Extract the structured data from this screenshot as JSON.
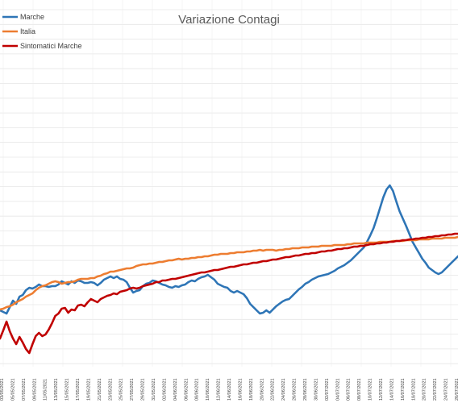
{
  "chart_data": {
    "type": "line",
    "title": "Variazione Contagi",
    "xlabel": "",
    "ylabel": "",
    "legend_position": "top-left",
    "grid": true,
    "x_tick_labels": [
      "03/05/2021",
      "05/05/2021",
      "07/05/2021",
      "09/05/2021",
      "11/05/2021",
      "13/05/2021",
      "15/05/2021",
      "17/05/2021",
      "19/05/2021",
      "21/05/2021",
      "23/05/2021",
      "25/05/2021",
      "27/05/2021",
      "29/05/2021",
      "31/05/2021",
      "02/06/2021",
      "04/06/2021",
      "06/06/2021",
      "08/06/2021",
      "10/06/2021",
      "12/06/2021",
      "14/06/2021",
      "16/06/2021",
      "18/06/2021",
      "20/06/2021",
      "22/06/2021",
      "24/06/2021",
      "26/06/2021",
      "28/06/2021",
      "30/06/2021",
      "02/07/2021",
      "04/07/2021",
      "06/07/2021",
      "08/07/2021",
      "10/07/2021",
      "12/07/2021",
      "14/07/2021",
      "16/07/2021",
      "18/07/2021",
      "20/07/2021",
      "22/07/2021",
      "24/07/2021",
      "26/07/2021"
    ],
    "series": [
      {
        "name": "Marche",
        "color": "#2E75B6",
        "values": [
          385,
          387,
          389,
          381,
          373,
          377,
          368,
          366,
          360,
          357,
          358,
          356,
          353,
          355,
          355,
          356,
          355,
          355,
          353,
          349,
          351,
          353,
          349,
          351,
          348,
          349,
          351,
          351,
          350,
          351,
          354,
          351,
          347,
          345,
          343,
          345,
          343,
          346,
          347,
          350,
          357,
          363,
          361,
          360,
          355,
          352,
          351,
          348,
          349,
          351,
          353,
          354,
          356,
          357,
          355,
          356,
          354,
          353,
          350,
          348,
          349,
          346,
          344,
          343,
          341,
          344,
          347,
          352,
          354,
          356,
          357,
          361,
          363,
          361,
          363,
          365,
          370,
          377,
          381,
          385,
          389,
          388,
          385,
          388,
          384,
          380,
          377,
          374,
          372,
          371,
          367,
          363,
          359,
          356,
          352,
          350,
          347,
          345,
          343,
          342,
          341,
          340,
          338,
          336,
          333,
          331,
          329,
          326,
          323,
          319,
          315,
          311,
          307,
          300,
          292,
          283,
          271,
          258,
          245,
          235,
          230,
          237,
          250,
          262,
          271,
          280,
          290,
          300,
          307,
          314,
          321,
          326,
          332,
          335,
          338,
          340,
          338,
          334,
          330,
          326,
          322,
          318
        ]
      },
      {
        "name": "Italia",
        "color": "#ED7D31",
        "values": [
          384,
          383,
          381,
          380,
          378,
          375,
          373,
          371,
          368,
          366,
          364,
          360,
          357,
          355,
          354,
          352,
          350,
          349,
          350,
          352,
          351,
          350,
          350,
          349,
          347,
          346,
          346,
          346,
          345,
          345,
          343,
          342,
          340,
          339,
          337,
          337,
          336,
          335,
          334,
          333,
          333,
          332,
          330,
          329,
          328,
          328,
          327,
          327,
          326,
          325,
          325,
          324,
          323,
          323,
          322,
          321,
          322,
          321,
          321,
          320,
          320,
          319,
          319,
          318,
          318,
          317,
          316,
          316,
          315,
          315,
          315,
          314,
          314,
          313,
          313,
          313,
          312,
          312,
          311,
          311,
          310,
          311,
          310,
          310,
          310,
          311,
          310,
          310,
          309,
          309,
          308,
          308,
          308,
          307,
          307,
          307,
          306,
          306,
          306,
          305,
          305,
          305,
          305,
          304,
          304,
          304,
          304,
          303,
          303,
          302,
          302,
          302,
          302,
          301,
          301,
          301,
          301,
          300,
          300,
          300,
          300,
          299,
          299,
          299,
          299,
          298,
          298,
          298,
          298,
          297,
          297,
          297,
          297,
          296,
          296,
          296,
          296,
          295,
          295,
          295,
          295,
          294
        ]
      },
      {
        "name": "Sintomatici Marche",
        "color": "#C00000",
        "values": [
          420,
          410,
          399,
          411,
          420,
          427,
          418,
          425,
          433,
          438,
          427,
          417,
          413,
          417,
          415,
          409,
          401,
          392,
          389,
          383,
          382,
          388,
          384,
          385,
          379,
          378,
          380,
          375,
          371,
          373,
          375,
          371,
          369,
          367,
          366,
          364,
          365,
          362,
          361,
          360,
          358,
          357,
          358,
          357,
          355,
          354,
          353,
          352,
          350,
          350,
          348,
          348,
          347,
          346,
          346,
          345,
          344,
          343,
          342,
          341,
          340,
          339,
          338,
          338,
          337,
          336,
          335,
          335,
          334,
          333,
          332,
          331,
          331,
          330,
          329,
          328,
          328,
          327,
          326,
          326,
          325,
          324,
          324,
          323,
          322,
          322,
          321,
          320,
          319,
          319,
          318,
          317,
          317,
          316,
          315,
          315,
          314,
          314,
          313,
          312,
          312,
          311,
          311,
          310,
          309,
          309,
          308,
          308,
          307,
          306,
          306,
          305,
          305,
          304,
          303,
          303,
          302,
          302,
          301,
          301,
          300,
          300,
          299,
          299,
          298,
          298,
          297,
          297,
          296,
          296,
          295,
          295,
          294,
          294,
          293,
          293,
          292,
          292,
          291,
          291,
          290,
          290
        ]
      }
    ]
  }
}
